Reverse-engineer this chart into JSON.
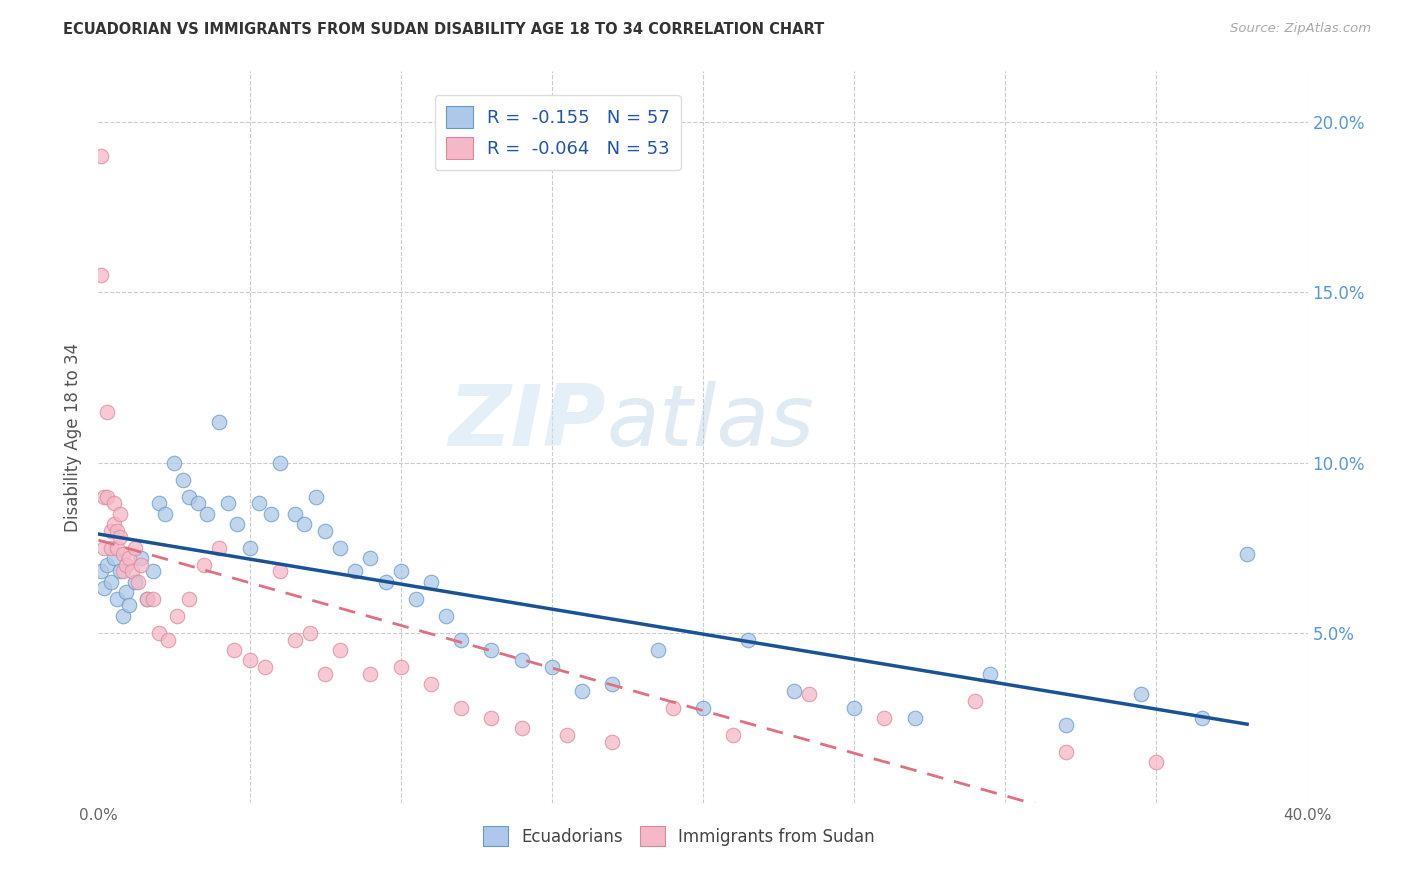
{
  "title": "ECUADORIAN VS IMMIGRANTS FROM SUDAN DISABILITY AGE 18 TO 34 CORRELATION CHART",
  "source": "Source: ZipAtlas.com",
  "ylabel": "Disability Age 18 to 34",
  "xlim": [
    0.0,
    0.4
  ],
  "ylim": [
    0.0,
    0.215
  ],
  "color_blue": "#adc8e8",
  "color_pink": "#f4b8c8",
  "color_trendline_blue": "#1a5296",
  "color_trendline_pink": "#e07080",
  "watermark_zip": "ZIP",
  "watermark_atlas": "atlas",
  "legend_entry1": "R =  -0.155   N = 57",
  "legend_entry2": "R =  -0.064   N = 53",
  "legend_label1": "Ecuadorians",
  "legend_label2": "Immigrants from Sudan",
  "blue_x": [
    0.001,
    0.002,
    0.003,
    0.004,
    0.005,
    0.006,
    0.007,
    0.008,
    0.009,
    0.01,
    0.012,
    0.014,
    0.016,
    0.018,
    0.02,
    0.022,
    0.025,
    0.028,
    0.03,
    0.033,
    0.036,
    0.04,
    0.043,
    0.046,
    0.05,
    0.053,
    0.057,
    0.06,
    0.065,
    0.068,
    0.072,
    0.075,
    0.08,
    0.085,
    0.09,
    0.095,
    0.1,
    0.105,
    0.11,
    0.115,
    0.12,
    0.13,
    0.14,
    0.15,
    0.16,
    0.17,
    0.185,
    0.2,
    0.215,
    0.23,
    0.25,
    0.27,
    0.295,
    0.32,
    0.345,
    0.365,
    0.38
  ],
  "blue_y": [
    0.068,
    0.063,
    0.07,
    0.065,
    0.072,
    0.06,
    0.068,
    0.055,
    0.062,
    0.058,
    0.065,
    0.072,
    0.06,
    0.068,
    0.088,
    0.085,
    0.1,
    0.095,
    0.09,
    0.088,
    0.085,
    0.112,
    0.088,
    0.082,
    0.075,
    0.088,
    0.085,
    0.1,
    0.085,
    0.082,
    0.09,
    0.08,
    0.075,
    0.068,
    0.072,
    0.065,
    0.068,
    0.06,
    0.065,
    0.055,
    0.048,
    0.045,
    0.042,
    0.04,
    0.033,
    0.035,
    0.045,
    0.028,
    0.048,
    0.033,
    0.028,
    0.025,
    0.038,
    0.023,
    0.032,
    0.025,
    0.073
  ],
  "pink_x": [
    0.001,
    0.001,
    0.002,
    0.002,
    0.003,
    0.003,
    0.004,
    0.004,
    0.005,
    0.005,
    0.006,
    0.006,
    0.007,
    0.007,
    0.008,
    0.008,
    0.009,
    0.01,
    0.011,
    0.012,
    0.013,
    0.014,
    0.016,
    0.018,
    0.02,
    0.023,
    0.026,
    0.03,
    0.035,
    0.04,
    0.045,
    0.05,
    0.055,
    0.06,
    0.065,
    0.07,
    0.075,
    0.08,
    0.09,
    0.1,
    0.11,
    0.12,
    0.13,
    0.14,
    0.155,
    0.17,
    0.19,
    0.21,
    0.235,
    0.26,
    0.29,
    0.32,
    0.35
  ],
  "pink_y": [
    0.19,
    0.155,
    0.09,
    0.075,
    0.115,
    0.09,
    0.08,
    0.075,
    0.088,
    0.082,
    0.08,
    0.075,
    0.085,
    0.078,
    0.073,
    0.068,
    0.07,
    0.072,
    0.068,
    0.075,
    0.065,
    0.07,
    0.06,
    0.06,
    0.05,
    0.048,
    0.055,
    0.06,
    0.07,
    0.075,
    0.045,
    0.042,
    0.04,
    0.068,
    0.048,
    0.05,
    0.038,
    0.045,
    0.038,
    0.04,
    0.035,
    0.028,
    0.025,
    0.022,
    0.02,
    0.018,
    0.028,
    0.02,
    0.032,
    0.025,
    0.03,
    0.015,
    0.012
  ]
}
